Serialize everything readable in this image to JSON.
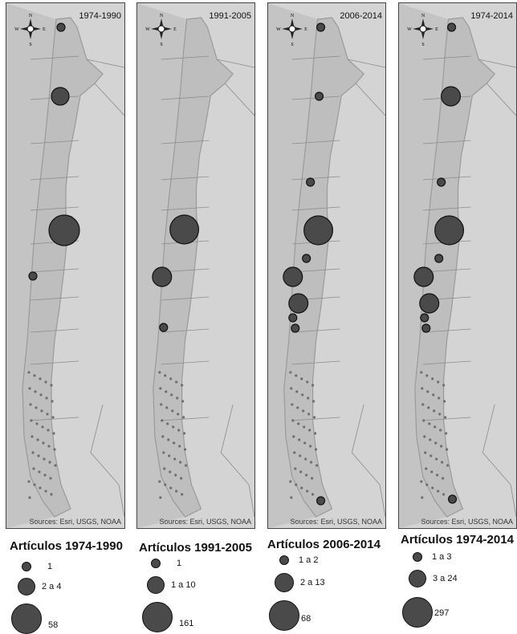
{
  "compass": {
    "n": "N",
    "s": "S",
    "e": "E",
    "w": "W"
  },
  "panels": [
    {
      "period": "1974-1990",
      "sources": "Sources: Esri, USGS, NOAA"
    },
    {
      "period": "1991-2005",
      "sources": "Sources: Esri, USGS, NOAA"
    },
    {
      "period": "2006-2014",
      "sources": "Sources: Esri, USGS, NOAA"
    },
    {
      "period": "1974-2014",
      "sources": "Sources: Esri, USGS, NOAA"
    }
  ],
  "legends": [
    {
      "title": "Artículos 1974-1990",
      "items": [
        "1",
        "2 a 4",
        "58"
      ]
    },
    {
      "title": "Artículos 1991-2005",
      "items": [
        "1",
        "1 a 10",
        "161"
      ]
    },
    {
      "title": "Artículos 2006-2014",
      "items": [
        "1 a 2",
        "2 a 13",
        "68"
      ]
    },
    {
      "title": "Artículos 1974-2014",
      "items": [
        "1 a 3",
        "3 a 24",
        "297"
      ]
    }
  ],
  "colors": {
    "land": "#d4d4d4",
    "chile": "#bebebe",
    "coast": "#9a9a9a",
    "circle_fill": "#4a4a4a",
    "circle_stroke": "#111111"
  }
}
